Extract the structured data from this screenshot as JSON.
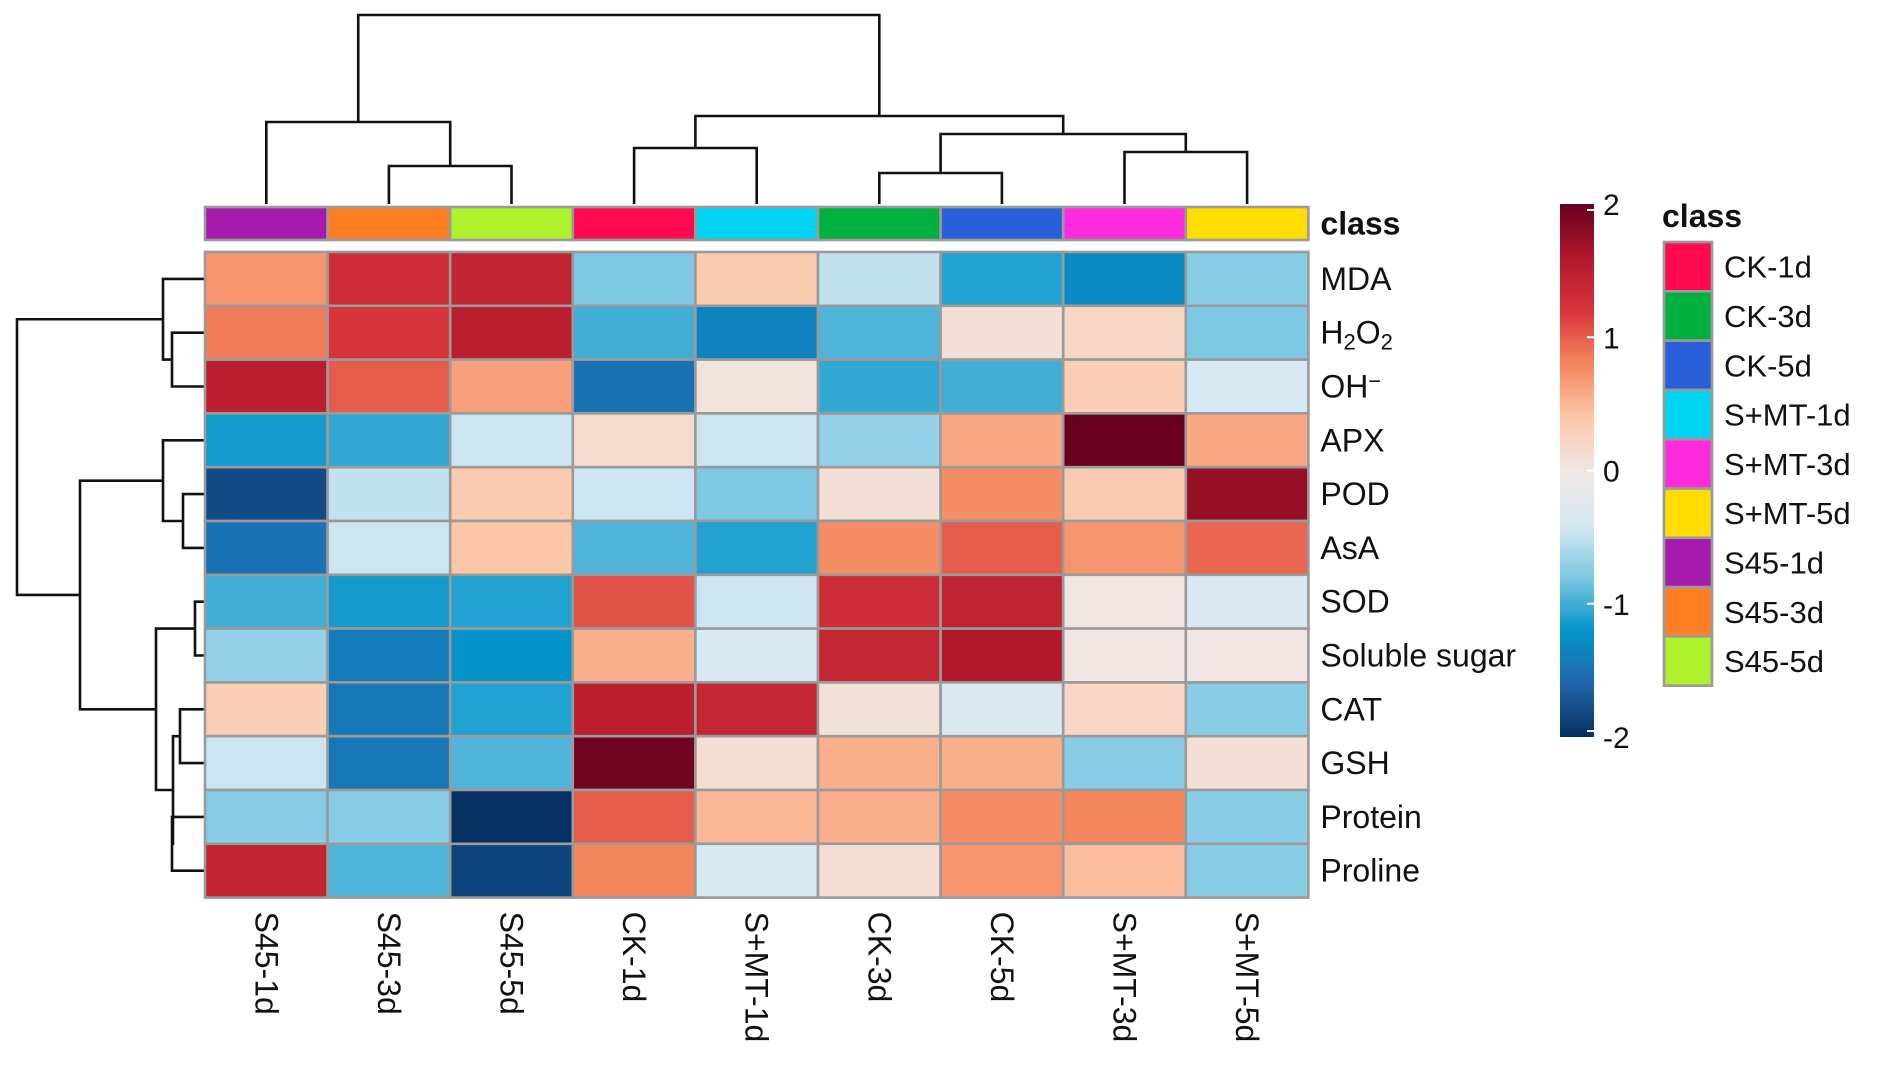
{
  "chart_data": {
    "type": "heatmap",
    "class_track_label": "class",
    "columns": [
      "S45-1d",
      "S45-3d",
      "S45-5d",
      "CK-1d",
      "S+MT-1d",
      "CK-3d",
      "CK-5d",
      "S+MT-3d",
      "S+MT-5d"
    ],
    "column_classes": [
      "S45-1d",
      "S45-3d",
      "S45-5d",
      "CK-1d",
      "S+MT-1d",
      "CK-3d",
      "CK-5d",
      "S+MT-3d",
      "S+MT-5d"
    ],
    "rows": [
      "MDA",
      "H2O2",
      "OH⁻",
      "APX",
      "POD",
      "AsA",
      "SOD",
      "Soluble sugar",
      "CAT",
      "GSH",
      "Protein",
      "Proline"
    ],
    "row_label_parts": {
      "H2O2": [
        "H",
        "2",
        "O",
        "2"
      ],
      "OH⁻": [
        "OH",
        "−"
      ]
    },
    "values": [
      [
        0.7,
        1.3,
        1.45,
        -0.8,
        0.35,
        -0.5,
        -1.1,
        -1.3,
        -0.75
      ],
      [
        0.85,
        1.2,
        1.5,
        -1.0,
        -1.35,
        -0.95,
        0.1,
        0.2,
        -0.8
      ],
      [
        1.5,
        1.0,
        0.65,
        -1.5,
        0.05,
        -1.05,
        -1.0,
        0.3,
        -0.4
      ],
      [
        -1.15,
        -1.05,
        -0.45,
        0.15,
        -0.45,
        -0.7,
        0.6,
        2.0,
        0.6
      ],
      [
        -1.8,
        -0.5,
        0.35,
        -0.45,
        -0.8,
        0.1,
        0.75,
        0.35,
        1.75
      ],
      [
        -1.5,
        -0.45,
        0.4,
        -0.95,
        -1.1,
        0.75,
        1.0,
        0.7,
        0.95
      ],
      [
        -1.0,
        -1.15,
        -1.1,
        1.05,
        -0.45,
        1.3,
        1.45,
        0.0,
        -0.35
      ],
      [
        -0.7,
        -1.4,
        -1.2,
        0.55,
        -0.4,
        1.4,
        1.6,
        0.0,
        0.0
      ],
      [
        0.3,
        -1.45,
        -1.1,
        1.5,
        1.4,
        0.08,
        -0.35,
        0.2,
        -0.75
      ],
      [
        -0.45,
        -1.45,
        -0.95,
        1.95,
        0.12,
        0.55,
        0.55,
        -0.75,
        0.1
      ],
      [
        -0.75,
        -0.75,
        -2.0,
        1.0,
        0.5,
        0.55,
        0.75,
        0.8,
        -0.75
      ],
      [
        1.45,
        -0.95,
        -1.85,
        0.8,
        -0.4,
        0.12,
        0.7,
        0.45,
        -0.75
      ]
    ],
    "color_scale": {
      "range": [
        -2,
        2
      ],
      "ticks": [
        2,
        1,
        0,
        -1,
        -2
      ],
      "tick_labels": [
        "2",
        "1",
        "0",
        "-1",
        "-2"
      ],
      "stops": [
        "#053061",
        "#2166ac",
        "#0594c9",
        "#7ec8e3",
        "#d7e9f3",
        "#f0e7e4",
        "#fcc7a8",
        "#f4865e",
        "#d6343b",
        "#b2182b",
        "#67001f"
      ]
    },
    "legend": {
      "title": "class",
      "entries": [
        {
          "label": "CK-1d",
          "color": "#ff0a4f"
        },
        {
          "label": "CK-3d",
          "color": "#00b140"
        },
        {
          "label": "CK-5d",
          "color": "#2b5fd9"
        },
        {
          "label": "S+MT-1d",
          "color": "#00d4f0"
        },
        {
          "label": "S+MT-3d",
          "color": "#ff2cdd"
        },
        {
          "label": "S+MT-5d",
          "color": "#ffdd00"
        },
        {
          "label": "S45-1d",
          "color": "#a61aab"
        },
        {
          "label": "S45-3d",
          "color": "#ff7f24"
        },
        {
          "label": "S45-5d",
          "color": "#adf22a"
        }
      ]
    }
  }
}
